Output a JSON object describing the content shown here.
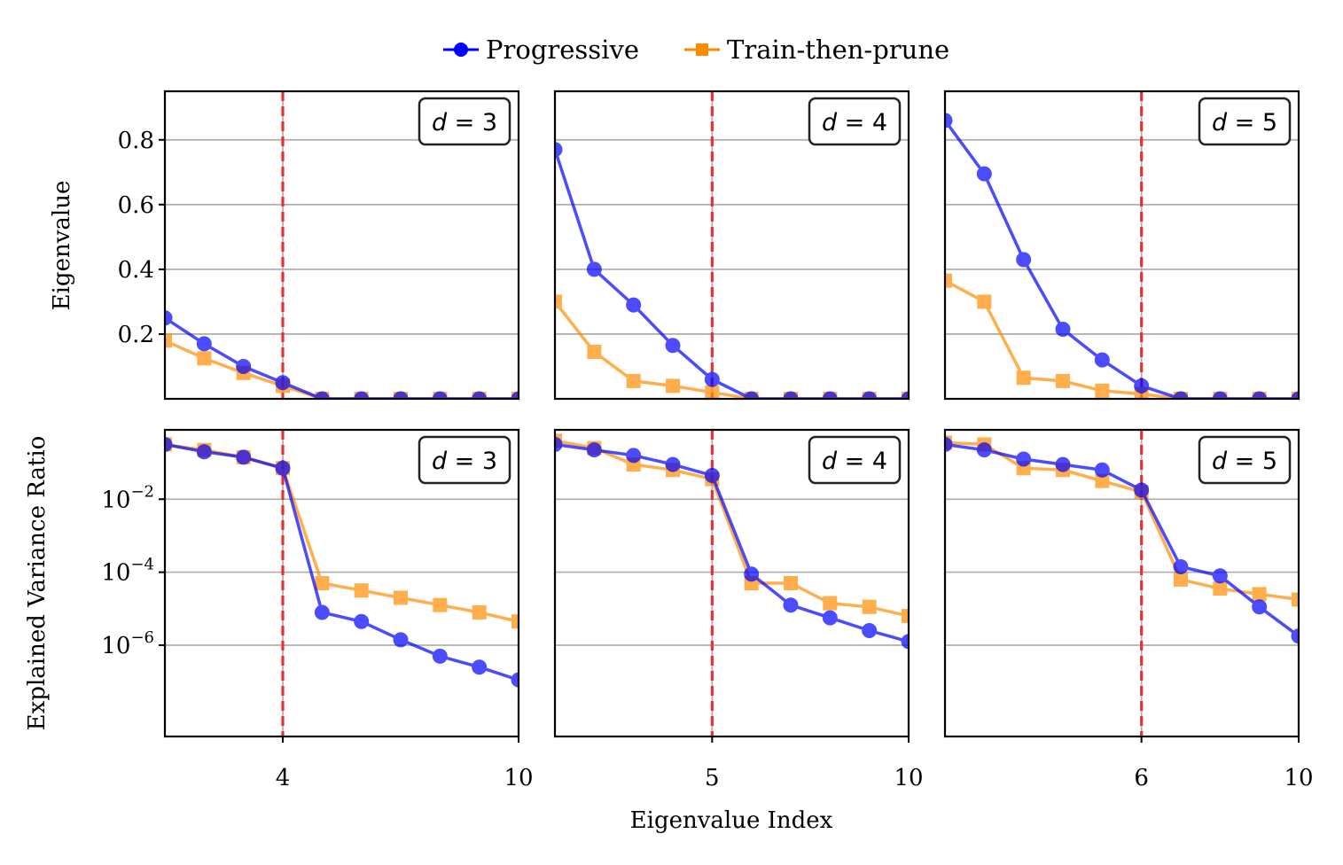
{
  "chart_data": {
    "type": "line",
    "legend": [
      {
        "name": "Progressive",
        "color": "#0000ff",
        "marker": "circle"
      },
      {
        "name": "Train-then-prune",
        "color": "#ff8c00",
        "marker": "square"
      }
    ],
    "legend_position": "top-center",
    "xlabel": "Eigenvalue Index",
    "xlim": [
      1,
      10
    ],
    "grid": true,
    "colors": {
      "progressive": "#0000ff",
      "train_then_prune": "#ff8c00",
      "cutoff": "#ee2222",
      "grid": "#b0b0b0"
    },
    "rows": [
      {
        "ylabel": "Eigenvalue",
        "yscale": "linear",
        "ylim": [
          0,
          0.95
        ],
        "yticks": [
          0.2,
          0.4,
          0.6,
          0.8
        ],
        "ytick_labels": [
          "0.2",
          "0.4",
          "0.6",
          "0.8"
        ]
      },
      {
        "ylabel": "Explained Variance Ratio",
        "yscale": "log",
        "ylim_exp": [
          -8.5,
          -0.1
        ],
        "yticks_exp": [
          -2,
          -4,
          -6
        ],
        "ytick_labels": [
          {
            "base": "10",
            "exp": "−2"
          },
          {
            "base": "10",
            "exp": "−4"
          },
          {
            "base": "10",
            "exp": "−6"
          }
        ]
      }
    ],
    "panels": [
      {
        "label": "d = 3",
        "d": 3,
        "cutoff": 4,
        "xticks": [
          4,
          10
        ],
        "eigenvalues": {
          "x": [
            1,
            2,
            3,
            4,
            5,
            6,
            7,
            8,
            9,
            10
          ],
          "progressive": [
            0.25,
            0.17,
            0.1,
            0.05,
            0.0,
            0.0,
            0.0,
            0.0,
            0.0,
            0.0
          ],
          "train_then_prune": [
            0.18,
            0.125,
            0.08,
            0.04,
            0.0,
            0.0,
            0.0,
            0.0,
            0.0,
            0.0
          ]
        },
        "explained_variance_ratio_log10": {
          "x": [
            1,
            2,
            3,
            4,
            5,
            6,
            7,
            8,
            9,
            10
          ],
          "progressive": [
            -0.5,
            -0.7,
            -0.85,
            -1.15,
            -5.1,
            -5.35,
            -5.85,
            -6.3,
            -6.6,
            -6.95
          ],
          "train_then_prune": [
            -0.5,
            -0.65,
            -0.85,
            -1.15,
            -4.3,
            -4.5,
            -4.7,
            -4.9,
            -5.1,
            -5.35
          ]
        }
      },
      {
        "label": "d = 4",
        "d": 4,
        "cutoff": 5,
        "xticks": [
          5,
          10
        ],
        "eigenvalues": {
          "x": [
            1,
            2,
            3,
            4,
            5,
            6,
            7,
            8,
            9,
            10
          ],
          "progressive": [
            0.77,
            0.4,
            0.29,
            0.165,
            0.06,
            0.0,
            0.0,
            0.0,
            0.0,
            0.0
          ],
          "train_then_prune": [
            0.3,
            0.145,
            0.055,
            0.04,
            0.02,
            0.0,
            0.0,
            0.0,
            0.0,
            0.0
          ]
        },
        "explained_variance_ratio_log10": {
          "x": [
            1,
            2,
            3,
            4,
            5,
            6,
            7,
            8,
            9,
            10
          ],
          "progressive": [
            -0.5,
            -0.65,
            -0.8,
            -1.05,
            -1.35,
            -4.05,
            -4.9,
            -5.25,
            -5.6,
            -5.9
          ],
          "train_then_prune": [
            -0.4,
            -0.6,
            -1.05,
            -1.2,
            -1.45,
            -4.3,
            -4.3,
            -4.85,
            -4.95,
            -5.2
          ]
        }
      },
      {
        "label": "d = 5",
        "d": 5,
        "cutoff": 6,
        "xticks": [
          6,
          10
        ],
        "eigenvalues": {
          "x": [
            1,
            2,
            3,
            4,
            5,
            6,
            7,
            8,
            9,
            10
          ],
          "progressive": [
            0.86,
            0.695,
            0.43,
            0.215,
            0.12,
            0.04,
            0.0,
            0.0,
            0.0,
            0.0
          ],
          "train_then_prune": [
            0.365,
            0.3,
            0.065,
            0.055,
            0.025,
            0.015,
            0.0,
            0.0,
            0.0,
            0.0
          ]
        },
        "explained_variance_ratio_log10": {
          "x": [
            1,
            2,
            3,
            4,
            5,
            6,
            7,
            8,
            9,
            10
          ],
          "progressive": [
            -0.5,
            -0.65,
            -0.9,
            -1.05,
            -1.2,
            -1.75,
            -3.85,
            -4.1,
            -4.95,
            -5.75
          ],
          "train_then_prune": [
            -0.45,
            -0.5,
            -1.15,
            -1.2,
            -1.5,
            -1.8,
            -4.2,
            -4.45,
            -4.6,
            -4.75
          ]
        }
      }
    ]
  }
}
